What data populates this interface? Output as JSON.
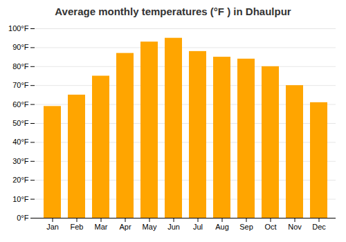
{
  "chart_data": {
    "type": "bar",
    "title": "Average monthly temperatures (°F ) in Dhaulpur",
    "categories": [
      "Jan",
      "Feb",
      "Mar",
      "Apr",
      "May",
      "Jun",
      "Jul",
      "Aug",
      "Sep",
      "Oct",
      "Nov",
      "Dec"
    ],
    "values": [
      59,
      65,
      75,
      87,
      93,
      95,
      88,
      85,
      84,
      80,
      70,
      61
    ],
    "color": "#FFA500",
    "ylim": [
      0,
      100
    ],
    "yticks": [
      {
        "value": 0,
        "label": "0°F"
      },
      {
        "value": 10,
        "label": "10°F"
      },
      {
        "value": 20,
        "label": "20°F"
      },
      {
        "value": 30,
        "label": "30°F"
      },
      {
        "value": 40,
        "label": "40°F"
      },
      {
        "value": 50,
        "label": "50°F"
      },
      {
        "value": 60,
        "label": "60°F"
      },
      {
        "value": 70,
        "label": "70°F"
      },
      {
        "value": 80,
        "label": "80°F"
      },
      {
        "value": 90,
        "label": "90°F"
      },
      {
        "value": 100,
        "label": "100°F"
      }
    ],
    "grid": true
  }
}
